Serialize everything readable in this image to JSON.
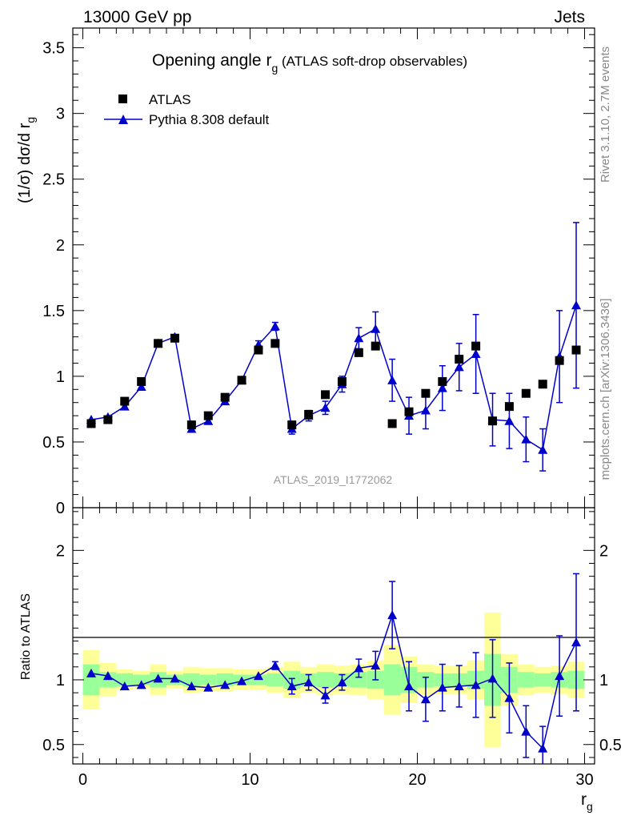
{
  "header": {
    "energy_label": "13000 GeV pp",
    "category_label": "Jets"
  },
  "side": {
    "rivet_label": "Rivet 3.1.10,  2.7M events",
    "mcplots_label": "mcplots.cern.ch [arXiv:1306.3436]"
  },
  "colors": {
    "mc": "#0000cc",
    "data": "#000000",
    "band_inner": "#99ff99",
    "band_outer": "#ffff99"
  },
  "chart_data": [
    {
      "type": "scatter",
      "title": "Opening angle r",
      "title_sub": "g",
      "title_suffix": " (ATLAS soft-drop observables)",
      "ylabel": "(1/σ) dσ/d r",
      "ylabel_sub": "g",
      "watermark": "ATLAS_2019_I1772062",
      "ylim": [
        0,
        3.65
      ],
      "xlim": [
        -0.6,
        30.6
      ],
      "yticks": [
        "0",
        "0.5",
        "1",
        "1.5",
        "2",
        "2.5",
        "3",
        "3.5"
      ],
      "legend_position": "top-left",
      "series": [
        {
          "name": "ATLAS",
          "marker": "square",
          "x": [
            0.5,
            1.5,
            2.5,
            3.5,
            4.5,
            5.5,
            6.5,
            7.5,
            8.5,
            9.5,
            10.5,
            11.5,
            12.5,
            13.5,
            14.5,
            15.5,
            16.5,
            17.5,
            18.5,
            19.5,
            20.5,
            21.5,
            22.5,
            23.5,
            24.5,
            25.5,
            26.5,
            27.5,
            28.5,
            29.5
          ],
          "y": [
            0.64,
            0.67,
            0.81,
            0.96,
            1.25,
            1.29,
            0.63,
            0.7,
            0.84,
            0.97,
            1.2,
            1.25,
            0.63,
            0.71,
            0.86,
            0.96,
            1.18,
            1.23,
            0.64,
            0.73,
            0.87,
            0.96,
            1.13,
            1.23,
            0.66,
            0.77,
            0.87,
            0.94,
            1.12,
            1.2
          ]
        },
        {
          "name": "Pythia 8.308 default",
          "marker": "triangle",
          "x": [
            0.5,
            1.5,
            2.5,
            3.5,
            4.5,
            5.5,
            6.5,
            7.5,
            8.5,
            9.5,
            10.5,
            11.5,
            12.5,
            13.5,
            14.5,
            15.5,
            16.5,
            17.5,
            18.5,
            19.5,
            20.5,
            21.5,
            22.5,
            23.5,
            24.5,
            25.5,
            26.5,
            27.5,
            28.5,
            29.5
          ],
          "y": [
            0.67,
            0.69,
            0.77,
            0.92,
            1.25,
            1.3,
            0.6,
            0.66,
            0.81,
            0.97,
            1.24,
            1.38,
            0.6,
            0.7,
            0.76,
            0.94,
            1.29,
            1.36,
            0.97,
            0.7,
            0.74,
            0.91,
            1.07,
            1.17,
            0.67,
            0.66,
            0.52,
            0.44,
            1.15,
            1.54
          ],
          "err": [
            0.01,
            0.01,
            0.01,
            0.01,
            0.01,
            0.01,
            0.01,
            0.01,
            0.01,
            0.01,
            0.03,
            0.03,
            0.04,
            0.04,
            0.05,
            0.06,
            0.08,
            0.13,
            0.16,
            0.14,
            0.14,
            0.17,
            0.18,
            0.3,
            0.2,
            0.21,
            0.17,
            0.16,
            0.35,
            0.63
          ]
        }
      ]
    },
    {
      "type": "scatter",
      "ylabel": "Ratio to ATLAS",
      "xlabel": "r",
      "xlabel_sub": "g",
      "ylim": [
        0.35,
        2.33
      ],
      "xlim": [
        -0.6,
        30.6
      ],
      "xticks": [
        "0",
        "10",
        "20",
        "30"
      ],
      "yticks": [
        "0.5",
        "1",
        "2"
      ],
      "bands": {
        "x": [
          0.5,
          1.5,
          2.5,
          3.5,
          4.5,
          5.5,
          6.5,
          7.5,
          8.5,
          9.5,
          10.5,
          11.5,
          12.5,
          13.5,
          14.5,
          15.5,
          16.5,
          17.5,
          18.5,
          19.5,
          20.5,
          21.5,
          22.5,
          23.5,
          24.5,
          25.5,
          26.5,
          27.5,
          28.5,
          29.5
        ],
        "inner": [
          0.12,
          0.06,
          0.05,
          0.04,
          0.06,
          0.04,
          0.05,
          0.04,
          0.05,
          0.04,
          0.04,
          0.05,
          0.07,
          0.05,
          0.06,
          0.05,
          0.06,
          0.07,
          0.12,
          0.1,
          0.06,
          0.05,
          0.05,
          0.07,
          0.2,
          0.1,
          0.06,
          0.05,
          0.06,
          0.07
        ],
        "outer": [
          0.23,
          0.13,
          0.08,
          0.07,
          0.12,
          0.07,
          0.1,
          0.09,
          0.09,
          0.08,
          0.08,
          0.1,
          0.14,
          0.1,
          0.12,
          0.11,
          0.12,
          0.15,
          0.27,
          0.18,
          0.12,
          0.11,
          0.11,
          0.15,
          0.52,
          0.2,
          0.12,
          0.1,
          0.11,
          0.14
        ]
      },
      "series": [
        {
          "name": "Pythia 8.308 default",
          "x": [
            0.5,
            1.5,
            2.5,
            3.5,
            4.5,
            5.5,
            6.5,
            7.5,
            8.5,
            9.5,
            10.5,
            11.5,
            12.5,
            13.5,
            14.5,
            15.5,
            16.5,
            17.5,
            18.5,
            19.5,
            20.5,
            21.5,
            22.5,
            23.5,
            24.5,
            25.5,
            26.5,
            27.5,
            28.5,
            29.5
          ],
          "y": [
            1.05,
            1.03,
            0.95,
            0.96,
            1.01,
            1.01,
            0.95,
            0.94,
            0.96,
            0.99,
            1.03,
            1.11,
            0.95,
            0.98,
            0.88,
            0.98,
            1.09,
            1.11,
            1.5,
            0.95,
            0.85,
            0.94,
            0.95,
            0.96,
            1.01,
            0.86,
            0.6,
            0.47,
            1.03,
            1.29
          ],
          "err": [
            0.01,
            0.01,
            0.01,
            0.01,
            0.01,
            0.01,
            0.01,
            0.01,
            0.01,
            0.01,
            0.02,
            0.03,
            0.06,
            0.06,
            0.06,
            0.06,
            0.07,
            0.11,
            0.26,
            0.19,
            0.17,
            0.18,
            0.16,
            0.25,
            0.3,
            0.27,
            0.2,
            0.17,
            0.31,
            0.53
          ]
        }
      ]
    }
  ]
}
